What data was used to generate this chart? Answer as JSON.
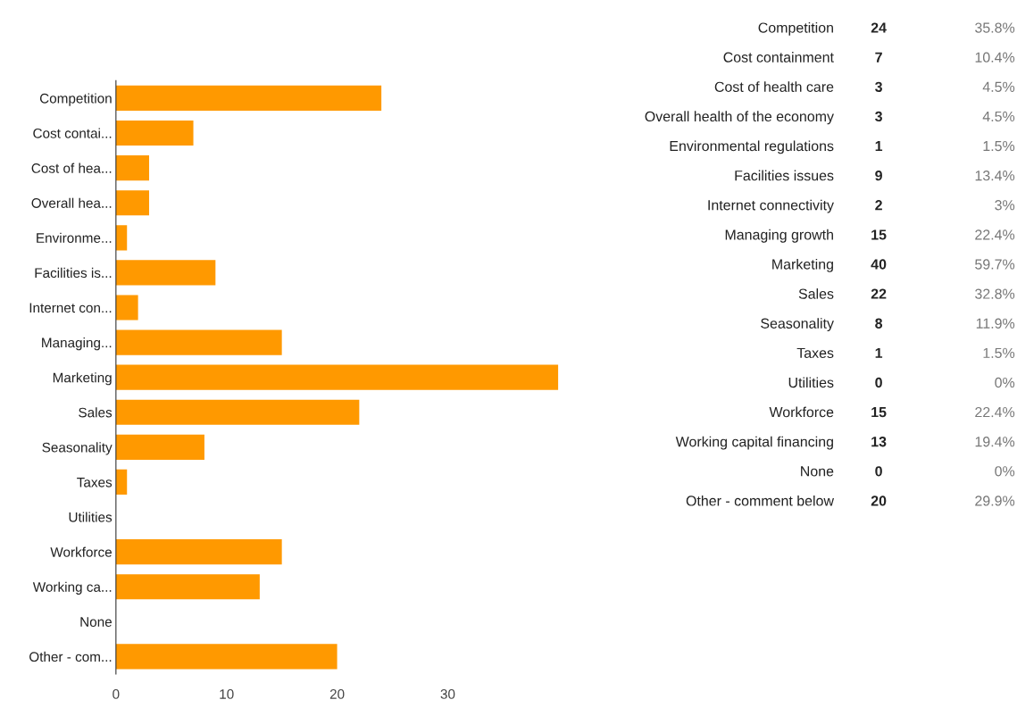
{
  "chart_data": [
    {
      "type": "bar",
      "orientation": "horizontal",
      "color": "#ff9900",
      "categories": [
        "Competition",
        "Cost contai...",
        "Cost of hea...",
        "Overall hea...",
        "Environme...",
        "Facilities is...",
        "Internet con...",
        "Managing...",
        "Marketing",
        "Sales",
        "Seasonality",
        "Taxes",
        "Utilities",
        "Workforce",
        "Working ca...",
        "None",
        "Other - com..."
      ],
      "values": [
        24,
        7,
        3,
        3,
        1,
        9,
        2,
        15,
        40,
        22,
        8,
        1,
        0,
        15,
        13,
        0,
        20
      ],
      "xlim": [
        0,
        40
      ],
      "xticks": [
        0,
        10,
        20,
        30
      ],
      "grid": false,
      "legend": false
    },
    {
      "type": "other",
      "categories": [
        "Competition",
        "Cost containment",
        "Cost of health care",
        "Overall health of the economy",
        "Environmental regulations",
        "Facilities issues",
        "Internet connectivity",
        "Managing growth",
        "Marketing",
        "Sales",
        "Seasonality",
        "Taxes",
        "Utilities",
        "Workforce",
        "Working capital financing",
        "None",
        "Other - comment below"
      ],
      "values": [
        24,
        7,
        3,
        3,
        1,
        9,
        2,
        15,
        40,
        22,
        8,
        1,
        0,
        15,
        13,
        0,
        20
      ],
      "data_labels": true,
      "annotations": [
        "35.8%",
        "10.4%",
        "4.5%",
        "4.5%",
        "1.5%",
        "13.4%",
        "3%",
        "22.4%",
        "59.7%",
        "32.8%",
        "11.9%",
        "1.5%",
        "0%",
        "22.4%",
        "19.4%",
        "0%",
        "29.9%"
      ]
    }
  ]
}
